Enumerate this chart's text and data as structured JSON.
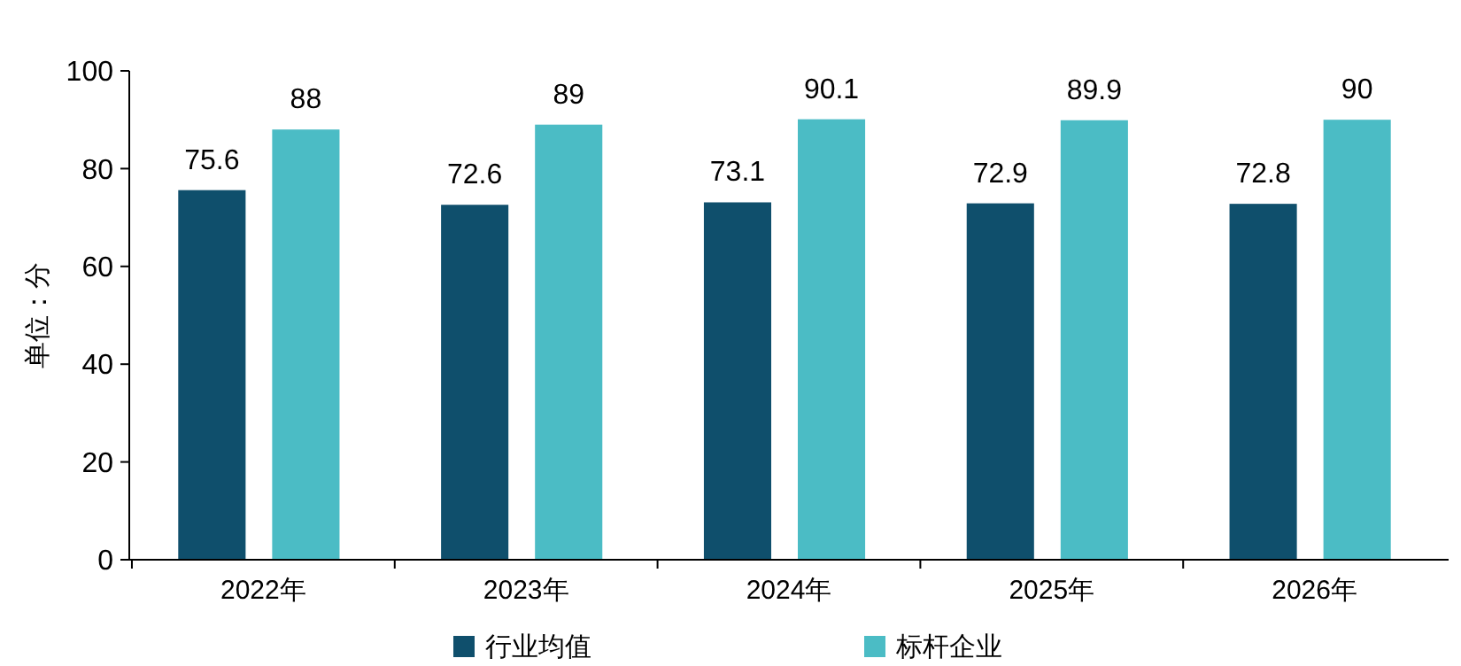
{
  "chart_data": {
    "type": "bar",
    "ylabel": "单位：分",
    "categories": [
      "2022年",
      "2023年",
      "2024年",
      "2025年",
      "2026年"
    ],
    "series": [
      {
        "name": "行业均值",
        "color": "#0f4f6c",
        "values": [
          75.6,
          72.6,
          73.1,
          72.9,
          72.8
        ]
      },
      {
        "name": "标杆企业",
        "color": "#4bbcc5",
        "values": [
          88,
          89,
          90.1,
          89.9,
          90
        ]
      }
    ],
    "ylim": [
      0,
      100
    ],
    "yticks": [
      0,
      20,
      40,
      60,
      80,
      100
    ],
    "data_labels": true,
    "legend": "bottom",
    "grid": false
  }
}
